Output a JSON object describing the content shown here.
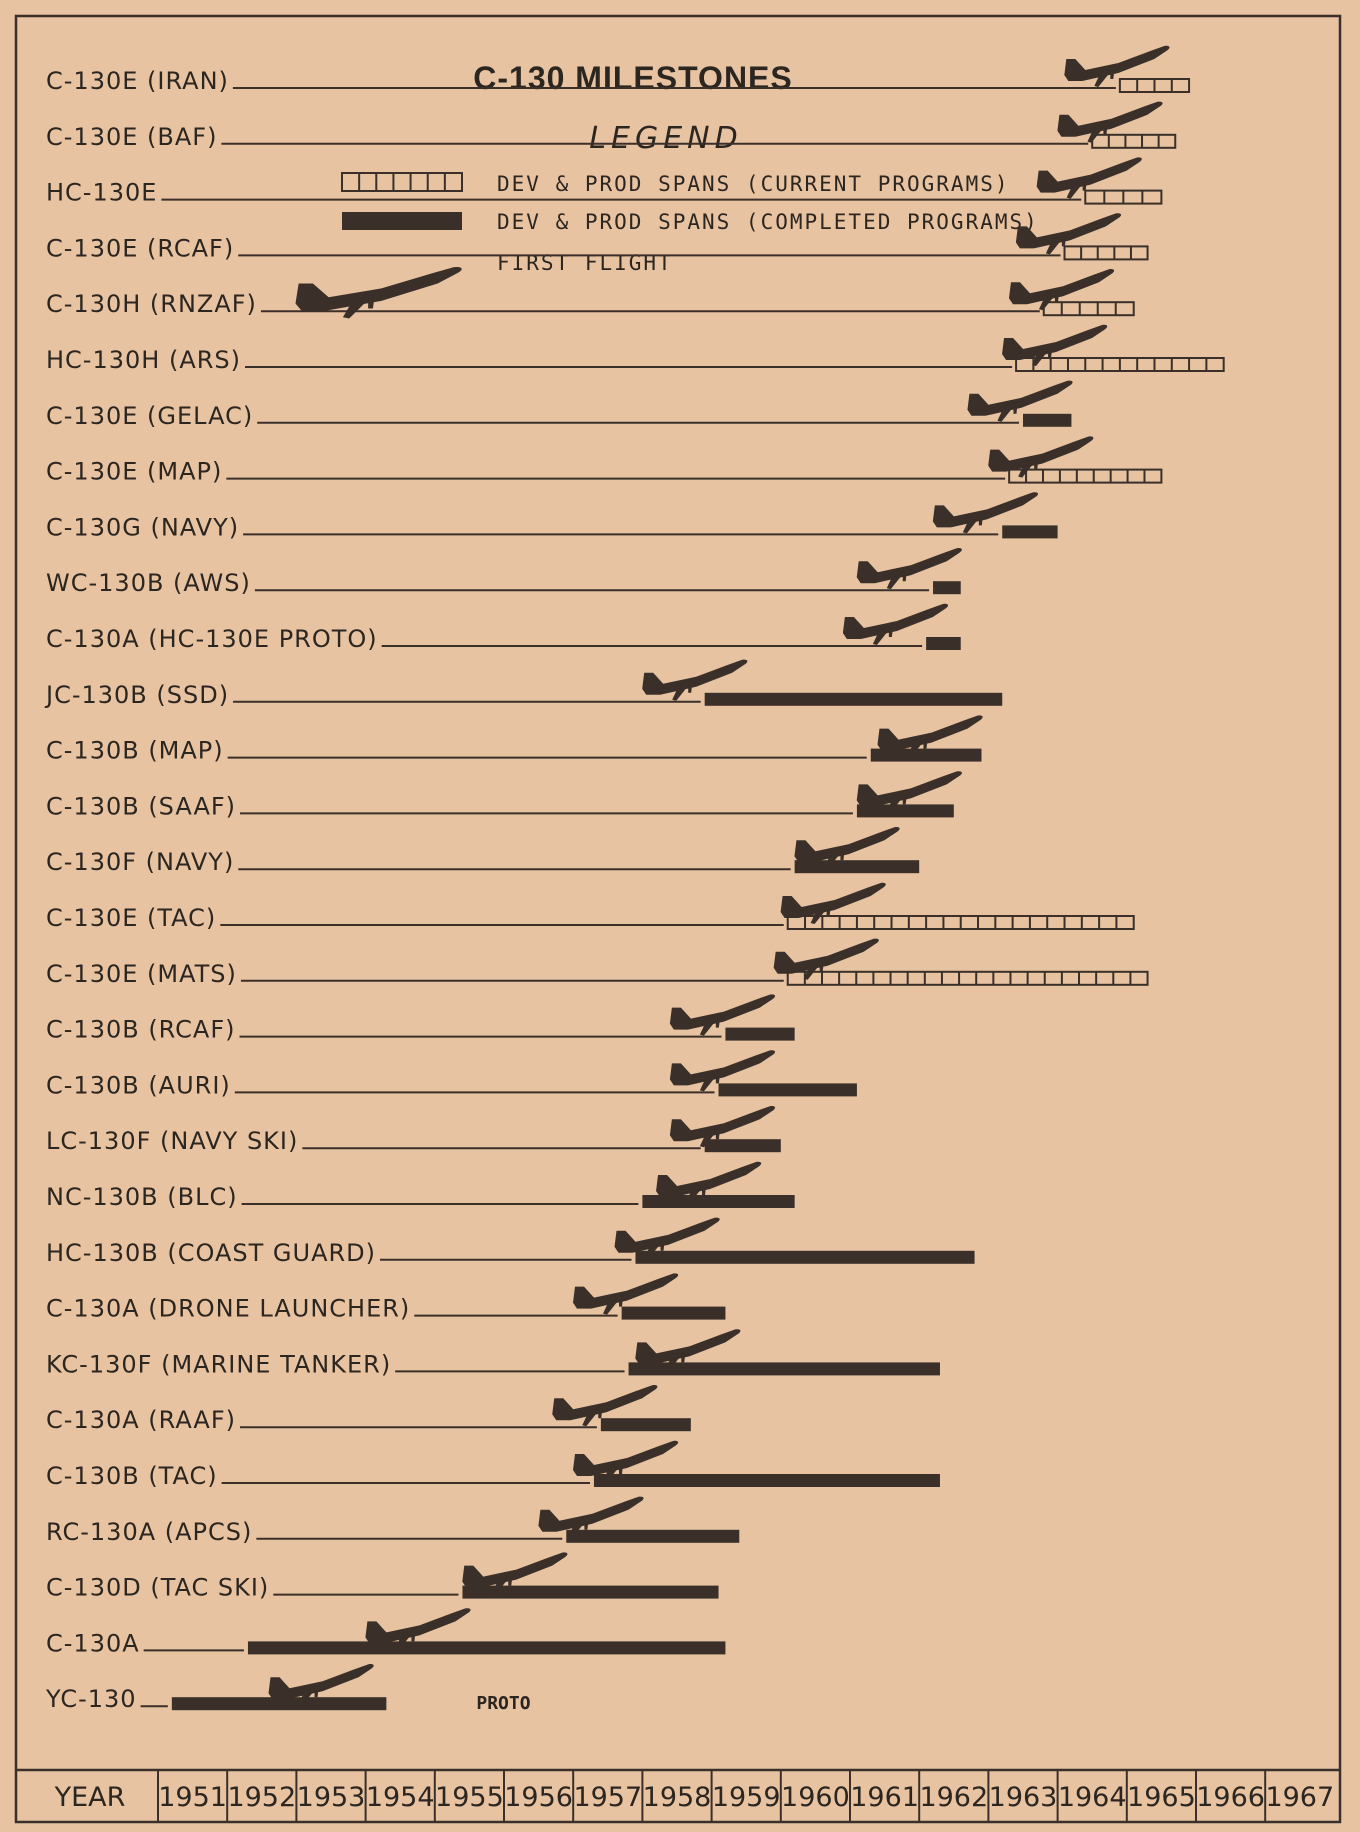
{
  "chart_data": {
    "type": "gantt",
    "title": "C-130 MILESTONES",
    "legend_title": "LEGEND",
    "legend": {
      "current": "DEV & PROD SPANS (CURRENT PROGRAMS)",
      "completed": "DEV & PROD SPANS (COMPLETED PROGRAMS)",
      "first_flight": "FIRST FLIGHT"
    },
    "axis_label": "YEAR",
    "years": [
      "1951",
      "1952",
      "1953",
      "1954",
      "1955",
      "1956",
      "1957",
      "1958",
      "1959",
      "1960",
      "1961",
      "1962",
      "1963",
      "1964",
      "1965",
      "1966",
      "1967"
    ],
    "rows": [
      {
        "label": "C-130E (IRAN)",
        "status": "current",
        "start": 1964.9,
        "end": 1965.9,
        "first_flight": 1965.6
      },
      {
        "label": "C-130E (BAF)",
        "status": "current",
        "start": 1964.5,
        "end": 1965.7,
        "first_flight": 1965.5
      },
      {
        "label": "HC-130E",
        "status": "current",
        "start": 1964.4,
        "end": 1965.5,
        "first_flight": 1965.2
      },
      {
        "label": "C-130E (RCAF)",
        "status": "current",
        "start": 1964.1,
        "end": 1965.3,
        "first_flight": 1964.9
      },
      {
        "label": "C-130H (RNZAF)",
        "status": "current",
        "start": 1963.8,
        "end": 1965.1,
        "first_flight": 1964.8
      },
      {
        "label": "HC-130H (ARS)",
        "status": "current",
        "start": 1963.4,
        "end": 1966.4,
        "first_flight": 1964.7
      },
      {
        "label": "C-130E (GELAC)",
        "status": "completed",
        "start": 1963.5,
        "end": 1964.2,
        "first_flight": 1964.2
      },
      {
        "label": "C-130E (MAP)",
        "status": "current",
        "start": 1963.3,
        "end": 1965.5,
        "first_flight": 1964.5
      },
      {
        "label": "C-130G (NAVY)",
        "status": "completed",
        "start": 1963.2,
        "end": 1964.0,
        "first_flight": 1963.7
      },
      {
        "label": "WC-130B (AWS)",
        "status": "completed",
        "start": 1962.2,
        "end": 1962.6,
        "first_flight": 1962.6
      },
      {
        "label": "C-130A (HC-130E PROTO)",
        "status": "completed",
        "start": 1962.1,
        "end": 1962.6,
        "first_flight": 1962.4
      },
      {
        "label": "JC-130B (SSD)",
        "status": "completed",
        "start": 1958.9,
        "end": 1963.2,
        "first_flight": 1959.5
      },
      {
        "label": "C-130B (MAP)",
        "status": "completed",
        "start": 1961.3,
        "end": 1962.9,
        "first_flight": 1962.9
      },
      {
        "label": "C-130B (SAAF)",
        "status": "completed",
        "start": 1961.1,
        "end": 1962.5,
        "first_flight": 1962.6
      },
      {
        "label": "C-130F (NAVY)",
        "status": "completed",
        "start": 1960.2,
        "end": 1962.0,
        "first_flight": 1961.7
      },
      {
        "label": "C-130E (TAC)",
        "status": "current",
        "start": 1960.1,
        "end": 1965.1,
        "first_flight": 1961.5
      },
      {
        "label": "C-130E (MATS)",
        "status": "current",
        "start": 1960.1,
        "end": 1965.3,
        "first_flight": 1961.4
      },
      {
        "label": "C-130B (RCAF)",
        "status": "completed",
        "start": 1959.2,
        "end": 1960.2,
        "first_flight": 1959.9
      },
      {
        "label": "C-130B (AURI)",
        "status": "completed",
        "start": 1959.1,
        "end": 1961.1,
        "first_flight": 1959.9
      },
      {
        "label": "LC-130F (NAVY SKI)",
        "status": "completed",
        "start": 1958.9,
        "end": 1960.0,
        "first_flight": 1959.9
      },
      {
        "label": "NC-130B (BLC)",
        "status": "completed",
        "start": 1958.0,
        "end": 1960.2,
        "first_flight": 1959.7
      },
      {
        "label": "HC-130B (COAST GUARD)",
        "status": "completed",
        "start": 1957.9,
        "end": 1962.8,
        "first_flight": 1959.1
      },
      {
        "label": "C-130A (DRONE LAUNCHER)",
        "status": "completed",
        "start": 1957.7,
        "end": 1959.2,
        "first_flight": 1958.5
      },
      {
        "label": "KC-130F (MARINE TANKER)",
        "status": "completed",
        "start": 1957.8,
        "end": 1962.3,
        "first_flight": 1959.4
      },
      {
        "label": "C-130A (RAAF)",
        "status": "completed",
        "start": 1957.4,
        "end": 1958.7,
        "first_flight": 1958.2
      },
      {
        "label": "C-130B (TAC)",
        "status": "completed",
        "start": 1957.3,
        "end": 1962.3,
        "first_flight": 1958.5
      },
      {
        "label": "RC-130A (APCS)",
        "status": "completed",
        "start": 1956.9,
        "end": 1959.4,
        "first_flight": 1958.0
      },
      {
        "label": "C-130D (TAC SKI)",
        "status": "completed",
        "start": 1955.4,
        "end": 1959.1,
        "first_flight": 1956.9
      },
      {
        "label": "C-130A",
        "status": "completed",
        "start": 1952.3,
        "end": 1959.2,
        "first_flight": 1955.5
      },
      {
        "label": "YC-130",
        "status": "completed",
        "start": 1951.2,
        "end": 1954.3,
        "first_flight": 1954.1,
        "note": "PROTO"
      }
    ]
  },
  "colors": {
    "background": "#e7c3a2",
    "ink": "#3a3029"
  }
}
